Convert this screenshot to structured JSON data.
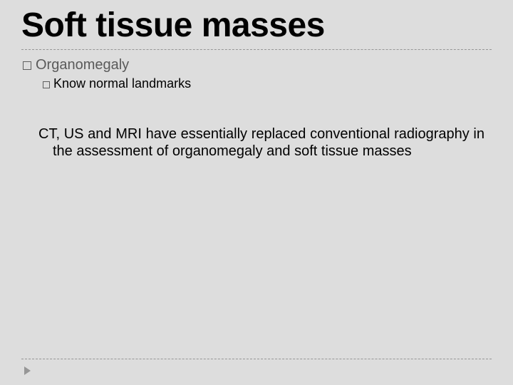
{
  "slide": {
    "title": "Soft tissue masses",
    "bullets": {
      "lvl1": {
        "text": "Organomegaly"
      },
      "lvl2": {
        "text": "Know normal landmarks"
      }
    },
    "paragraph": "CT, US and MRI have essentially replaced conventional radiography in the assessment of organomegaly and soft tissue masses"
  },
  "style": {
    "background_color": "#dddddd",
    "title_color": "#000000",
    "title_fontsize": 48,
    "title_fontweight": "bold",
    "divider_color": "#969696",
    "divider_style": "dashed",
    "lvl1_color": "#5a5a5a",
    "lvl1_fontsize": 20,
    "lvl2_color": "#000000",
    "lvl2_fontsize": 18,
    "para_color": "#000000",
    "para_fontsize": 20,
    "para_align": "justify",
    "bullet_border_color": "#5f5f5f",
    "arrow_color": "#969696"
  }
}
